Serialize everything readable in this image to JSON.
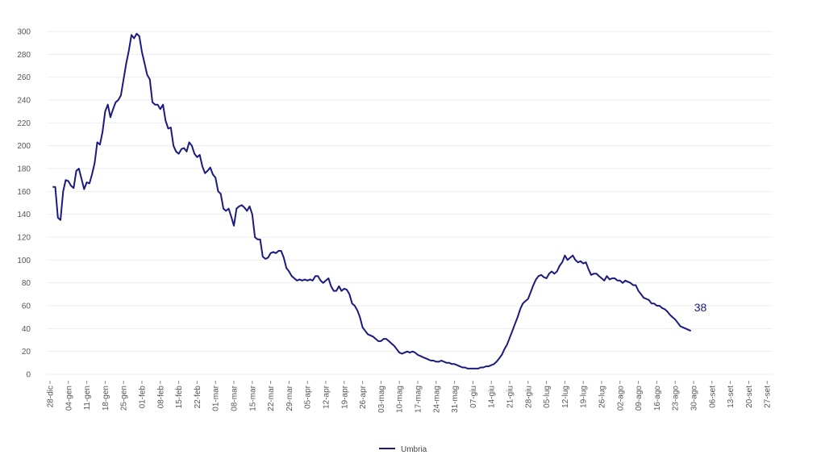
{
  "chart_data": {
    "type": "line",
    "title": "",
    "xlabel": "",
    "ylabel": "",
    "ylim": [
      0,
      300
    ],
    "yticks": [
      0,
      20,
      40,
      60,
      80,
      100,
      120,
      140,
      160,
      180,
      200,
      220,
      240,
      260,
      280,
      300
    ],
    "x_ticks": [
      "28-dic",
      "04-gen",
      "11-gen",
      "18-gen",
      "25-gen",
      "01-feb",
      "08-feb",
      "15-feb",
      "22-feb",
      "01-mar",
      "08-mar",
      "15-mar",
      "22-mar",
      "29-mar",
      "05-apr",
      "12-apr",
      "19-apr",
      "26-apr",
      "03-mag",
      "10-mag",
      "17-mag",
      "24-mag",
      "31-mag",
      "07-giu",
      "14-giu",
      "21-giu",
      "28-giu",
      "05-lug",
      "12-lug",
      "19-lug",
      "26-lug",
      "02-ago",
      "09-ago",
      "16-ago",
      "23-ago",
      "30-ago",
      "06-set",
      "13-set",
      "20-set",
      "27-set"
    ],
    "grid": true,
    "legend_position": "bottom",
    "color": "#1a1a80",
    "end_label": "38",
    "series": [
      {
        "name": "Umbria",
        "points": [
          [
            1,
            164
          ],
          [
            2,
            164
          ],
          [
            3,
            137
          ],
          [
            4,
            135
          ],
          [
            5,
            160
          ],
          [
            6,
            170
          ],
          [
            7,
            169
          ],
          [
            8,
            165
          ],
          [
            9,
            163
          ],
          [
            10,
            178
          ],
          [
            11,
            180
          ],
          [
            12,
            171
          ],
          [
            13,
            162
          ],
          [
            14,
            168
          ],
          [
            15,
            167
          ],
          [
            16,
            175
          ],
          [
            17,
            185
          ],
          [
            18,
            203
          ],
          [
            19,
            201
          ],
          [
            20,
            212
          ],
          [
            21,
            230
          ],
          [
            22,
            236
          ],
          [
            23,
            225
          ],
          [
            24,
            232
          ],
          [
            25,
            238
          ],
          [
            26,
            240
          ],
          [
            27,
            244
          ],
          [
            28,
            258
          ],
          [
            29,
            272
          ],
          [
            30,
            283
          ],
          [
            31,
            297
          ],
          [
            32,
            294
          ],
          [
            33,
            298
          ],
          [
            34,
            296
          ],
          [
            35,
            282
          ],
          [
            36,
            272
          ],
          [
            37,
            262
          ],
          [
            38,
            258
          ],
          [
            39,
            238
          ],
          [
            40,
            236
          ],
          [
            41,
            236
          ],
          [
            42,
            232
          ],
          [
            43,
            236
          ],
          [
            44,
            222
          ],
          [
            45,
            215
          ],
          [
            46,
            216
          ],
          [
            47,
            200
          ],
          [
            48,
            195
          ],
          [
            49,
            193
          ],
          [
            50,
            197
          ],
          [
            51,
            198
          ],
          [
            52,
            195
          ],
          [
            53,
            203
          ],
          [
            54,
            200
          ],
          [
            55,
            193
          ],
          [
            56,
            190
          ],
          [
            57,
            192
          ],
          [
            58,
            182
          ],
          [
            59,
            176
          ],
          [
            60,
            178
          ],
          [
            61,
            181
          ],
          [
            62,
            175
          ],
          [
            63,
            172
          ],
          [
            64,
            160
          ],
          [
            65,
            158
          ],
          [
            66,
            145
          ],
          [
            67,
            143
          ],
          [
            68,
            145
          ],
          [
            69,
            138
          ],
          [
            70,
            130
          ],
          [
            71,
            145
          ],
          [
            72,
            147
          ],
          [
            73,
            148
          ],
          [
            74,
            146
          ],
          [
            75,
            143
          ],
          [
            76,
            147
          ],
          [
            77,
            140
          ],
          [
            78,
            120
          ],
          [
            79,
            118
          ],
          [
            80,
            118
          ],
          [
            81,
            103
          ],
          [
            82,
            101
          ],
          [
            83,
            102
          ],
          [
            84,
            106
          ],
          [
            85,
            107
          ],
          [
            86,
            106
          ],
          [
            87,
            108
          ],
          [
            88,
            108
          ],
          [
            89,
            102
          ],
          [
            90,
            93
          ],
          [
            91,
            90
          ],
          [
            92,
            86
          ],
          [
            93,
            84
          ],
          [
            94,
            82
          ],
          [
            95,
            83
          ],
          [
            96,
            82
          ],
          [
            97,
            83
          ],
          [
            98,
            82
          ],
          [
            99,
            83
          ],
          [
            100,
            82
          ],
          [
            101,
            86
          ],
          [
            102,
            86
          ],
          [
            103,
            82
          ],
          [
            104,
            80
          ],
          [
            105,
            82
          ],
          [
            106,
            84
          ],
          [
            107,
            77
          ],
          [
            108,
            73
          ],
          [
            109,
            73
          ],
          [
            110,
            77
          ],
          [
            111,
            73
          ],
          [
            112,
            75
          ],
          [
            113,
            74
          ],
          [
            114,
            70
          ],
          [
            115,
            62
          ],
          [
            116,
            60
          ],
          [
            117,
            56
          ],
          [
            118,
            50
          ],
          [
            119,
            41
          ],
          [
            120,
            38
          ],
          [
            121,
            35
          ],
          [
            122,
            34
          ],
          [
            123,
            33
          ],
          [
            124,
            31
          ],
          [
            125,
            29
          ],
          [
            126,
            29
          ],
          [
            127,
            31
          ],
          [
            128,
            31
          ],
          [
            129,
            29
          ],
          [
            130,
            27
          ],
          [
            131,
            25
          ],
          [
            132,
            22
          ],
          [
            133,
            19
          ],
          [
            134,
            18
          ],
          [
            135,
            19
          ],
          [
            136,
            20
          ],
          [
            137,
            19
          ],
          [
            138,
            20
          ],
          [
            139,
            19
          ],
          [
            140,
            17
          ],
          [
            141,
            16
          ],
          [
            142,
            15
          ],
          [
            143,
            14
          ],
          [
            144,
            13
          ],
          [
            145,
            12
          ],
          [
            146,
            12
          ],
          [
            147,
            11
          ],
          [
            148,
            11
          ],
          [
            149,
            12
          ],
          [
            150,
            11
          ],
          [
            151,
            10
          ],
          [
            152,
            10
          ],
          [
            153,
            9
          ],
          [
            154,
            9
          ],
          [
            155,
            8
          ],
          [
            156,
            7
          ],
          [
            157,
            6
          ],
          [
            158,
            6
          ],
          [
            159,
            5
          ],
          [
            160,
            5
          ],
          [
            161,
            5
          ],
          [
            162,
            5
          ],
          [
            163,
            5
          ],
          [
            164,
            6
          ],
          [
            165,
            6
          ],
          [
            166,
            7
          ],
          [
            167,
            7
          ],
          [
            168,
            8
          ],
          [
            169,
            9
          ],
          [
            170,
            11
          ],
          [
            171,
            14
          ],
          [
            172,
            17
          ],
          [
            173,
            22
          ],
          [
            174,
            26
          ],
          [
            175,
            32
          ],
          [
            176,
            38
          ],
          [
            177,
            44
          ],
          [
            178,
            50
          ],
          [
            179,
            57
          ],
          [
            180,
            62
          ],
          [
            181,
            64
          ],
          [
            182,
            66
          ],
          [
            183,
            72
          ],
          [
            184,
            78
          ],
          [
            185,
            83
          ],
          [
            186,
            86
          ],
          [
            187,
            87
          ],
          [
            188,
            85
          ],
          [
            189,
            84
          ],
          [
            190,
            88
          ],
          [
            191,
            90
          ],
          [
            192,
            88
          ],
          [
            193,
            90
          ],
          [
            194,
            95
          ],
          [
            195,
            98
          ],
          [
            196,
            104
          ],
          [
            197,
            100
          ],
          [
            198,
            102
          ],
          [
            199,
            104
          ],
          [
            200,
            100
          ],
          [
            201,
            98
          ],
          [
            202,
            99
          ],
          [
            203,
            97
          ],
          [
            204,
            98
          ],
          [
            205,
            92
          ],
          [
            206,
            87
          ],
          [
            207,
            88
          ],
          [
            208,
            88
          ],
          [
            209,
            86
          ],
          [
            210,
            84
          ],
          [
            211,
            82
          ],
          [
            212,
            86
          ],
          [
            213,
            83
          ],
          [
            214,
            84
          ],
          [
            215,
            84
          ],
          [
            216,
            82
          ],
          [
            217,
            82
          ],
          [
            218,
            80
          ],
          [
            219,
            82
          ],
          [
            220,
            81
          ],
          [
            221,
            80
          ],
          [
            222,
            78
          ],
          [
            223,
            78
          ],
          [
            224,
            73
          ],
          [
            225,
            70
          ],
          [
            226,
            67
          ],
          [
            227,
            66
          ],
          [
            228,
            65
          ],
          [
            229,
            62
          ],
          [
            230,
            62
          ],
          [
            231,
            60
          ],
          [
            232,
            60
          ],
          [
            233,
            58
          ],
          [
            234,
            57
          ],
          [
            235,
            55
          ],
          [
            236,
            52
          ],
          [
            237,
            50
          ],
          [
            238,
            48
          ],
          [
            239,
            45
          ],
          [
            240,
            42
          ],
          [
            241,
            41
          ],
          [
            242,
            40
          ],
          [
            243,
            39
          ],
          [
            244,
            38
          ]
        ]
      }
    ]
  }
}
